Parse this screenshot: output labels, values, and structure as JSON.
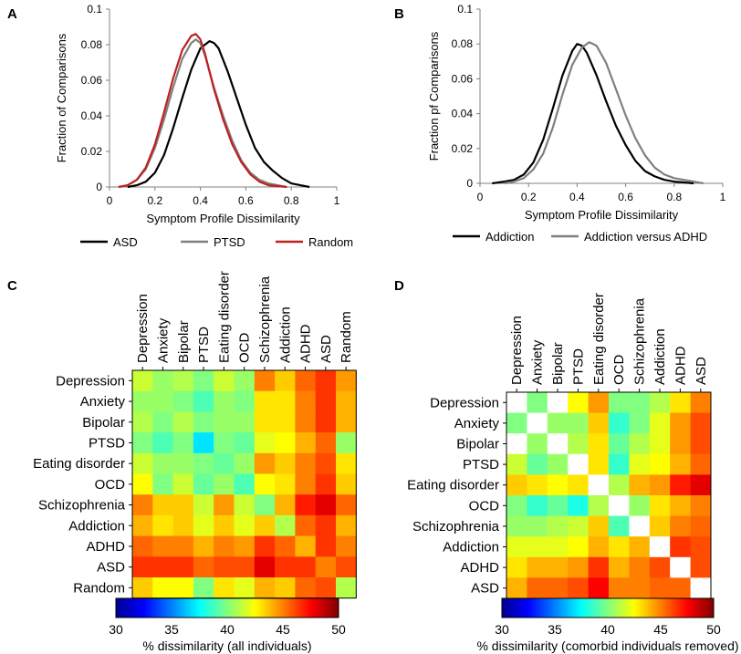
{
  "panels": {
    "A": "A",
    "B": "B",
    "C": "C",
    "D": "D"
  },
  "colors": {
    "asd": "#000000",
    "ptsd": "#808080",
    "random": "#c0201f",
    "addiction": "#000000",
    "addiction_vs_adhd": "#808080"
  },
  "chart_data": [
    {
      "id": "A",
      "type": "line",
      "title": "",
      "xlabel": "Symptom Profile Dissimilarity",
      "ylabel": "Fraction of Comparisons",
      "xlim": [
        0,
        1
      ],
      "ylim": [
        0,
        0.1
      ],
      "xticks": [
        "0",
        "0.2",
        "0.4",
        "0.6",
        "0.8",
        "1"
      ],
      "yticks": [
        "0",
        "0.02",
        "0.04",
        "0.06",
        "0.08",
        "0.1"
      ],
      "series": [
        {
          "name": "ASD",
          "color_key": "asd",
          "x": [
            0.08,
            0.12,
            0.16,
            0.2,
            0.24,
            0.28,
            0.32,
            0.36,
            0.4,
            0.44,
            0.46,
            0.48,
            0.52,
            0.56,
            0.6,
            0.64,
            0.68,
            0.72,
            0.76,
            0.8,
            0.84,
            0.88
          ],
          "y": [
            0,
            0.001,
            0.003,
            0.008,
            0.018,
            0.033,
            0.05,
            0.066,
            0.078,
            0.082,
            0.081,
            0.078,
            0.065,
            0.05,
            0.035,
            0.022,
            0.014,
            0.009,
            0.005,
            0.002,
            0.001,
            0
          ]
        },
        {
          "name": "PTSD",
          "color_key": "ptsd",
          "x": [
            0.04,
            0.08,
            0.12,
            0.16,
            0.2,
            0.24,
            0.28,
            0.32,
            0.36,
            0.38,
            0.4,
            0.42,
            0.46,
            0.5,
            0.54,
            0.58,
            0.62,
            0.66,
            0.7,
            0.74,
            0.78
          ],
          "y": [
            0,
            0.001,
            0.004,
            0.01,
            0.022,
            0.038,
            0.056,
            0.072,
            0.081,
            0.083,
            0.081,
            0.074,
            0.056,
            0.04,
            0.026,
            0.015,
            0.008,
            0.004,
            0.002,
            0.001,
            0
          ]
        },
        {
          "name": "Random",
          "color_key": "random",
          "x": [
            0.04,
            0.08,
            0.12,
            0.16,
            0.2,
            0.24,
            0.28,
            0.32,
            0.36,
            0.38,
            0.4,
            0.42,
            0.46,
            0.5,
            0.54,
            0.58,
            0.62,
            0.66,
            0.7,
            0.74,
            0.78
          ],
          "y": [
            0,
            0.001,
            0.004,
            0.011,
            0.024,
            0.042,
            0.061,
            0.077,
            0.085,
            0.086,
            0.083,
            0.075,
            0.055,
            0.038,
            0.024,
            0.014,
            0.007,
            0.003,
            0.001,
            0.0005,
            0
          ]
        }
      ],
      "legend": [
        "ASD",
        "PTSD",
        "Random"
      ],
      "legend_position": "bottom"
    },
    {
      "id": "B",
      "type": "line",
      "title": "",
      "xlabel": "Symptom Profile Dissimilarity",
      "ylabel": "Fraction pf Comparisons",
      "xlim": [
        0,
        1
      ],
      "ylim": [
        0,
        0.1
      ],
      "xticks": [
        "0",
        "0.2",
        "0.4",
        "0.6",
        "0.8",
        "1"
      ],
      "yticks": [
        "0",
        "0.02",
        "0.04",
        "0.06",
        "0.08",
        "0.1"
      ],
      "series": [
        {
          "name": "Addiction",
          "color_key": "addiction",
          "x": [
            0.05,
            0.1,
            0.14,
            0.18,
            0.22,
            0.26,
            0.3,
            0.34,
            0.38,
            0.4,
            0.42,
            0.44,
            0.48,
            0.52,
            0.56,
            0.6,
            0.64,
            0.68,
            0.72,
            0.76,
            0.8,
            0.84,
            0.88
          ],
          "y": [
            0,
            0.001,
            0.002,
            0.005,
            0.012,
            0.025,
            0.043,
            0.062,
            0.076,
            0.08,
            0.079,
            0.075,
            0.062,
            0.047,
            0.033,
            0.022,
            0.013,
            0.007,
            0.004,
            0.002,
            0.001,
            0.0005,
            0
          ]
        },
        {
          "name": "Addiction versus ADHD",
          "color_key": "addiction_vs_adhd",
          "x": [
            0.1,
            0.14,
            0.18,
            0.22,
            0.26,
            0.3,
            0.34,
            0.38,
            0.42,
            0.45,
            0.48,
            0.52,
            0.56,
            0.6,
            0.64,
            0.68,
            0.72,
            0.76,
            0.8,
            0.84,
            0.88,
            0.92
          ],
          "y": [
            0,
            0.001,
            0.003,
            0.008,
            0.017,
            0.032,
            0.051,
            0.068,
            0.078,
            0.081,
            0.079,
            0.069,
            0.054,
            0.039,
            0.026,
            0.016,
            0.009,
            0.005,
            0.003,
            0.002,
            0.001,
            0
          ]
        }
      ],
      "legend": [
        "Addiction",
        "Addiction versus ADHD"
      ],
      "legend_position": "bottom"
    },
    {
      "id": "C",
      "type": "heatmap",
      "row_labels": [
        "Depression",
        "Anxiety",
        "Bipolar",
        "PTSD",
        "Eating disorder",
        "OCD",
        "Schizophrenia",
        "Addiction",
        "ADHD",
        "ASD",
        "Random"
      ],
      "col_labels": [
        "Depression",
        "Anxiety",
        "Bipolar",
        "PTSD",
        "Eating disorder",
        "OCD",
        "Schizophrenia",
        "Addiction",
        "ADHD",
        "ASD",
        "Random"
      ],
      "values": [
        [
          41.5,
          40.5,
          41.0,
          40.0,
          41.5,
          40.5,
          45.0,
          43.5,
          45.5,
          46.5,
          44.5
        ],
        [
          40.5,
          40.5,
          40.0,
          39.0,
          40.5,
          40.0,
          43.0,
          43.0,
          45.0,
          46.5,
          44.0
        ],
        [
          41.0,
          40.0,
          41.0,
          40.0,
          40.5,
          40.5,
          43.0,
          43.0,
          45.0,
          46.5,
          44.0
        ],
        [
          40.0,
          39.0,
          40.0,
          37.0,
          40.0,
          39.5,
          42.0,
          42.5,
          44.0,
          45.5,
          40.5
        ],
        [
          41.5,
          40.5,
          40.5,
          40.0,
          39.5,
          40.5,
          44.5,
          43.5,
          45.0,
          46.0,
          43.0
        ],
        [
          42.5,
          40.0,
          41.5,
          39.5,
          40.5,
          39.0,
          42.5,
          43.0,
          45.0,
          46.5,
          43.5
        ],
        [
          45.0,
          43.5,
          43.5,
          41.5,
          44.5,
          41.5,
          40.0,
          44.0,
          47.0,
          48.0,
          45.5
        ],
        [
          44.0,
          43.0,
          43.5,
          42.0,
          43.5,
          42.0,
          43.5,
          41.0,
          45.5,
          46.5,
          44.0
        ],
        [
          45.5,
          45.0,
          45.0,
          44.0,
          45.0,
          44.5,
          46.5,
          45.5,
          44.0,
          46.5,
          45.0
        ],
        [
          46.5,
          46.5,
          46.5,
          45.5,
          46.0,
          46.0,
          48.0,
          46.5,
          46.5,
          45.0,
          46.0
        ],
        [
          43.5,
          42.5,
          42.5,
          40.0,
          43.0,
          42.0,
          44.0,
          43.5,
          45.5,
          46.0,
          41.0
        ]
      ],
      "diagonal_blank": false,
      "vmin": 30,
      "vmax": 50,
      "colorbar_ticks": [
        "30",
        "35",
        "40",
        "45",
        "50"
      ],
      "colorbar_label": "% dissimilarity (all individuals)"
    },
    {
      "id": "D",
      "type": "heatmap",
      "row_labels": [
        "Depression",
        "Anxiety",
        "Bipolar",
        "PTSD",
        "Eating disorder",
        "OCD",
        "Schizophrenia",
        "Addiction",
        "ADHD",
        "ASD"
      ],
      "col_labels": [
        "Depression",
        "Anxiety",
        "Bipolar",
        "PTSD",
        "Eating disorder",
        "OCD",
        "Schizophrenia",
        "Addiction",
        "ADHD",
        "ASD"
      ],
      "values": [
        [
          0,
          40.0,
          0,
          42.5,
          44.5,
          40.0,
          40.0,
          41.0,
          43.0,
          45.0
        ],
        [
          40.0,
          0,
          40.5,
          40.5,
          43.5,
          38.5,
          40.0,
          42.0,
          44.5,
          46.0
        ],
        [
          0,
          40.5,
          0,
          41.0,
          43.0,
          39.5,
          41.0,
          42.0,
          44.5,
          46.0
        ],
        [
          41.5,
          39.5,
          40.5,
          0,
          43.0,
          38.5,
          42.0,
          42.5,
          44.0,
          45.5
        ],
        [
          43.5,
          43.0,
          42.5,
          43.0,
          0,
          41.0,
          44.0,
          44.5,
          47.0,
          48.0
        ],
        [
          40.0,
          38.5,
          39.5,
          38.0,
          41.0,
          0,
          40.5,
          43.0,
          44.0,
          45.0
        ],
        [
          40.5,
          40.5,
          41.0,
          41.5,
          43.5,
          39.0,
          0,
          43.5,
          45.0,
          45.5
        ],
        [
          42.0,
          42.0,
          42.0,
          42.5,
          44.0,
          43.0,
          44.0,
          0,
          46.5,
          46.0
        ],
        [
          43.0,
          44.0,
          44.0,
          44.5,
          46.5,
          44.0,
          45.0,
          46.0,
          0,
          46.0
        ],
        [
          44.0,
          45.5,
          45.5,
          46.0,
          47.5,
          45.0,
          45.0,
          45.5,
          45.5,
          0
        ]
      ],
      "diagonal_blank": true,
      "blank_cells": [
        [
          0,
          2
        ],
        [
          2,
          0
        ]
      ],
      "vmin": 30,
      "vmax": 50,
      "colorbar_ticks": [
        "30",
        "35",
        "40",
        "45",
        "50"
      ],
      "colorbar_label": "% dissimilarity (comorbid individuals removed)"
    }
  ]
}
